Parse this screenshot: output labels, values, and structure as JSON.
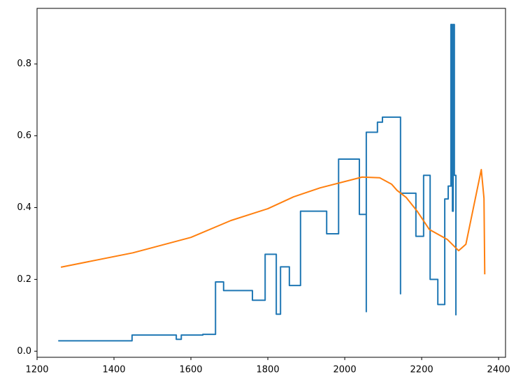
{
  "chart_data": {
    "type": "line",
    "xlim": [
      1200,
      2418
    ],
    "ylim": [
      -0.017,
      0.955
    ],
    "xticks": [
      1200,
      1400,
      1600,
      1800,
      2000,
      2200,
      2400
    ],
    "yticks": [
      {
        "value": 0,
        "label": "0.0"
      },
      0.2,
      0.4,
      0.6,
      0.8
    ],
    "grid": false,
    "series": [
      {
        "color": "#1f77b4",
        "drawstyle": "steps-post",
        "x": [
          1255,
          1447,
          1562,
          1575,
          1631,
          1664,
          1685,
          1760,
          1793,
          1822,
          1833,
          1856,
          1885,
          1953,
          1984,
          2038,
          2056,
          2056,
          2085,
          2098,
          2145,
          2145,
          2185,
          2205,
          2222,
          2242,
          2260,
          2269,
          2276,
          2277,
          2278,
          2280,
          2282,
          2285,
          2289
        ],
        "values": [
          0.029,
          0.045,
          0.033,
          0.045,
          0.047,
          0.193,
          0.169,
          0.142,
          0.27,
          0.103,
          0.235,
          0.183,
          0.39,
          0.327,
          0.535,
          0.381,
          0.11,
          0.61,
          0.638,
          0.652,
          0.16,
          0.44,
          0.32,
          0.49,
          0.2,
          0.13,
          0.424,
          0.46,
          0.91,
          0.46,
          0.91,
          0.39,
          0.91,
          0.49,
          0.1
        ]
      },
      {
        "color": "#ff7f0e",
        "drawstyle": "default",
        "x": [
          1262,
          1449,
          1600,
          1704,
          1800,
          1867,
          1936,
          2045,
          2091,
          2122,
          2136,
          2160,
          2189,
          2220,
          2267,
          2296,
          2315,
          2355,
          2362,
          2364
        ],
        "values": [
          0.234,
          0.274,
          0.317,
          0.364,
          0.397,
          0.43,
          0.455,
          0.485,
          0.483,
          0.465,
          0.448,
          0.428,
          0.389,
          0.339,
          0.311,
          0.28,
          0.298,
          0.506,
          0.426,
          0.214
        ]
      }
    ]
  }
}
